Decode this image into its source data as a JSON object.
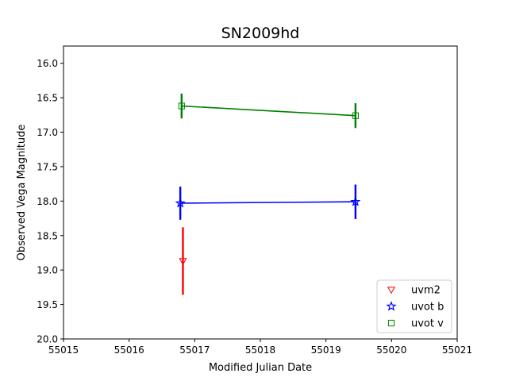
{
  "chart_data": {
    "type": "scatter",
    "title": "SN2009hd",
    "xlabel": "Modified Julian Date",
    "ylabel": "Observed Vega Magnitude",
    "xlim": [
      55015,
      55021
    ],
    "ylim": [
      20.0,
      15.75
    ],
    "y_inverted": true,
    "grid": false,
    "legend_position": "lower-right",
    "xticks": [
      55015,
      55016,
      55017,
      55018,
      55019,
      55020,
      55021
    ],
    "xtick_labels": [
      "55015",
      "55016",
      "55017",
      "55018",
      "55019",
      "55020",
      "55021"
    ],
    "yticks": [
      16.0,
      16.5,
      17.0,
      17.5,
      18.0,
      18.5,
      19.0,
      19.5,
      20.0
    ],
    "ytick_labels": [
      "16.0",
      "16.5",
      "17.0",
      "17.5",
      "18.0",
      "18.5",
      "19.0",
      "19.5",
      "20.0"
    ],
    "series": [
      {
        "name": "uvm2",
        "color": "#ff0000",
        "marker": "triangle-down",
        "connected": false,
        "points": [
          {
            "x": 55016.82,
            "y": 18.87,
            "err": 0.49
          }
        ]
      },
      {
        "name": "uvot b",
        "color": "#0000ff",
        "marker": "star",
        "connected": true,
        "points": [
          {
            "x": 55016.78,
            "y": 18.03,
            "err": 0.24
          },
          {
            "x": 55019.45,
            "y": 18.01,
            "err": 0.25
          }
        ]
      },
      {
        "name": "uvot v",
        "color": "#008000",
        "marker": "square",
        "connected": true,
        "points": [
          {
            "x": 55016.8,
            "y": 16.62,
            "err": 0.18
          },
          {
            "x": 55019.45,
            "y": 16.76,
            "err": 0.18
          }
        ]
      }
    ]
  }
}
